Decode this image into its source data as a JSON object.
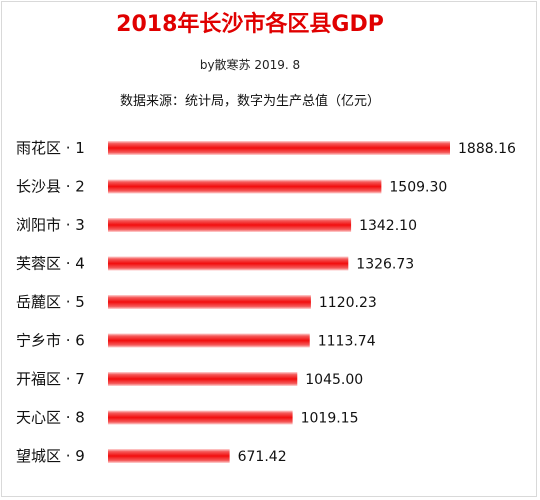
{
  "header": {
    "title": "2018年长沙市各区县GDP",
    "byline": "by散寒苏  2019. 8",
    "source_note": "数据来源：统计局，数字为生产总值（亿元）"
  },
  "colors": {
    "title": "#e00000",
    "bar_core": "#f20d0d",
    "bar_edge": "#ffd6d6"
  },
  "chart_data": {
    "type": "bar",
    "orientation": "horizontal",
    "title": "2018年长沙市各区县GDP",
    "subtitle": "数据来源：统计局，数字为生产总值（亿元）",
    "categories": [
      "雨花区 · 1",
      "长沙县 · 2",
      "浏阳市 · 3",
      "芙蓉区 · 4",
      "岳麓区 · 5",
      "宁乡市 · 6",
      "开福区 · 7",
      "天心区 · 8",
      "望城区 · 9"
    ],
    "values": [
      1888.16,
      1509.3,
      1342.1,
      1326.73,
      1120.23,
      1113.74,
      1045.0,
      1019.15,
      671.42
    ],
    "value_labels": [
      "1888.16",
      "1509.30",
      "1342.10",
      "1326.73",
      "1120.23",
      "1113.74",
      "1045.00",
      "1019.15",
      "671.42"
    ],
    "xlim": [
      0,
      1888.16
    ],
    "grid": false,
    "legend": "none"
  }
}
